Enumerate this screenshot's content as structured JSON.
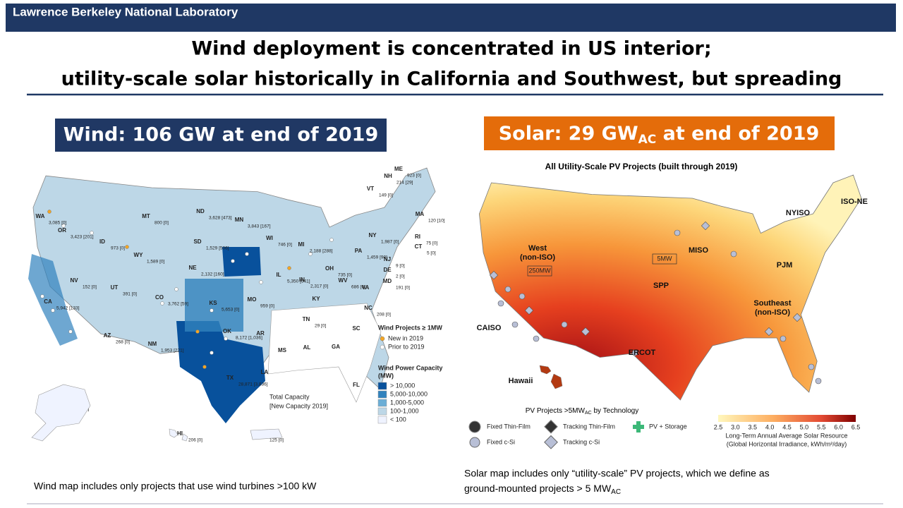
{
  "header": {
    "org": "Lawrence Berkeley National Laboratory"
  },
  "title": {
    "line1": "Wind deployment is concentrated in US interior;",
    "line2": "utility-scale solar historically in California and Southwest, but spreading"
  },
  "wind": {
    "banner": "Wind:  106 GW at end of 2019",
    "states": [
      {
        "state": "WA",
        "capacity": "3,085 [0]"
      },
      {
        "state": "OR",
        "capacity": "3,423 [201]"
      },
      {
        "state": "CA",
        "capacity": "5,942 [133]"
      },
      {
        "state": "NV",
        "capacity": "152 [0]"
      },
      {
        "state": "ID",
        "capacity": "973 [0]"
      },
      {
        "state": "MT",
        "capacity": "800 [0]"
      },
      {
        "state": "WY",
        "capacity": "1,589 [0]"
      },
      {
        "state": "UT",
        "capacity": "391 [0]"
      },
      {
        "state": "AZ",
        "capacity": "268 [0]"
      },
      {
        "state": "CO",
        "capacity": "3,762 [59]"
      },
      {
        "state": "NM",
        "capacity": "1,953 [221]"
      },
      {
        "state": "ND",
        "capacity": "3,628 [473]"
      },
      {
        "state": "SD",
        "capacity": "1,529 [506]"
      },
      {
        "state": "NE",
        "capacity": "2,132 [160]"
      },
      {
        "state": "KS",
        "capacity": "5,653 [0]"
      },
      {
        "state": "OK",
        "capacity": "8,172 [1,036]"
      },
      {
        "state": "TX",
        "capacity": "28,871 [3,836]"
      },
      {
        "state": "MN",
        "capacity": "3,843 [167]"
      },
      {
        "state": "WI",
        "capacity": "746 [0]"
      },
      {
        "state": "MI",
        "capacity": "2,188 [288]"
      },
      {
        "state": "IL",
        "capacity": "5,350 [541]"
      },
      {
        "state": "IN",
        "capacity": "2,317 [0]"
      },
      {
        "state": "OH",
        "capacity": "735 [0]"
      },
      {
        "state": "PA",
        "capacity": "1,459 [90]"
      },
      {
        "state": "NY",
        "capacity": "1,987 [0]"
      },
      {
        "state": "WV",
        "capacity": "686 [0]"
      },
      {
        "state": "MO",
        "capacity": "959 [0]"
      },
      {
        "state": "TN",
        "capacity": "29 [0]"
      },
      {
        "state": "ME",
        "capacity": "923 [0]"
      },
      {
        "state": "NH",
        "capacity": "214 [29]"
      },
      {
        "state": "VT",
        "capacity": "149 [0]"
      },
      {
        "state": "MA",
        "capacity": "120 [10]"
      },
      {
        "state": "RI",
        "capacity": "75 [0]"
      },
      {
        "state": "CT",
        "capacity": "5 [0]"
      },
      {
        "state": "NJ",
        "capacity": "9 [0]"
      },
      {
        "state": "DE",
        "capacity": "2 [0]"
      },
      {
        "state": "MD",
        "capacity": "191 [0]"
      },
      {
        "state": "AK",
        "capacity": "64 [1]"
      },
      {
        "state": "HI",
        "capacity": "206 [0]"
      },
      {
        "state": "PR",
        "capacity": "125 [0]"
      },
      {
        "state": "NC",
        "capacity": "208 [0]"
      }
    ],
    "other_states": [
      "VA",
      "KY",
      "AR",
      "MS",
      "AL",
      "GA",
      "SC",
      "LA",
      "FL"
    ],
    "projects_legend": {
      "title": "Wind Projects ≥ 1MW",
      "items": [
        "New in 2019",
        "Prior to 2019"
      ]
    },
    "capacity_legend": {
      "title": "Wind Power Capacity",
      "unit": "(MW)",
      "items": [
        "> 10,000",
        "5,000-10,000",
        "1,000-5,000",
        "100-1,000",
        "< 100"
      ],
      "colors": [
        "#08519c",
        "#3182bd",
        "#6baed6",
        "#bdd7e7",
        "#eff3ff"
      ]
    },
    "total_note": {
      "line1": "Total Capacity",
      "line2": "[New Capacity 2019]"
    },
    "footnote": "Wind map includes only projects that use wind turbines >100 kW"
  },
  "solar": {
    "banner_pre": "Solar:  29 GW",
    "banner_sub": "AC",
    "banner_post": " at end of 2019",
    "map_title": "All Utility-Scale PV Projects (built through 2019)",
    "regions": [
      [
        "West",
        "(non-ISO)"
      ],
      [
        "CAISO"
      ],
      [
        "Hawaii"
      ],
      [
        "SPP"
      ],
      [
        "MISO"
      ],
      [
        "ERCOT"
      ],
      [
        "PJM"
      ],
      [
        "NYISO"
      ],
      [
        "ISO-NE"
      ],
      [
        "Southeast",
        "(non-ISO)"
      ]
    ],
    "size_labels": [
      "5MW",
      "250MW"
    ],
    "tech_legend": {
      "title_pre": "PV Projects >5MW",
      "title_sub": "AC",
      "title_post": " by Technology",
      "items": [
        "Fixed Thin-Film",
        "Tracking Thin-Film",
        "PV + Storage",
        "Fixed c-Si",
        "Tracking c-Si"
      ]
    },
    "colorbar": {
      "ticks": [
        "2.5",
        "3.0",
        "3.5",
        "4.0",
        "4.5",
        "5.0",
        "5.5",
        "6.0",
        "6.5"
      ],
      "line1": "Long-Term Annual Average Solar Resource",
      "line2": "(Global Horizontal Irradiance, kWh/m²/day)"
    },
    "footnote_line1": "Solar map includes only “utility-scale” PV projects, which we define as",
    "footnote_line2_pre": "ground-mounted projects > 5 MW",
    "footnote_line2_sub": "AC"
  }
}
